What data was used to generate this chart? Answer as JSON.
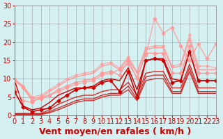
{
  "bg_color": "#d4f0f0",
  "grid_color": "#aaaaaa",
  "xlabel": "Vent moyen/en rafales ( km/h )",
  "xlabel_color": "#cc0000",
  "xlabel_fontsize": 9,
  "tick_color": "#cc0000",
  "tick_fontsize": 7,
  "ylim": [
    0,
    30
  ],
  "xlim": [
    0,
    23
  ],
  "yticks": [
    0,
    5,
    10,
    15,
    20,
    25,
    30
  ],
  "xticks": [
    0,
    1,
    2,
    3,
    4,
    5,
    6,
    7,
    8,
    9,
    10,
    11,
    12,
    13,
    14,
    15,
    16,
    17,
    18,
    19,
    20,
    21,
    22,
    23
  ],
  "series": [
    {
      "x": [
        0,
        1,
        2,
        3,
        4,
        5,
        6,
        7,
        8,
        9,
        10,
        11,
        12,
        13,
        14,
        15,
        16,
        17,
        18,
        19,
        20,
        21,
        22,
        23
      ],
      "y": [
        6.5,
        2.2,
        1.0,
        1.5,
        2.0,
        4.0,
        5.5,
        7.0,
        7.5,
        7.5,
        9.0,
        9.5,
        6.5,
        12.0,
        5.0,
        15.0,
        15.5,
        15.0,
        9.0,
        9.5,
        17.5,
        9.5,
        9.5,
        9.5
      ],
      "color": "#cc0000",
      "lw": 1.2,
      "marker": "D",
      "ms": 2.5,
      "alpha": 1.0
    },
    {
      "x": [
        0,
        1,
        2,
        3,
        4,
        5,
        6,
        7,
        8,
        9,
        10,
        11,
        12,
        13,
        14,
        15,
        16,
        17,
        18,
        19,
        20,
        21,
        22,
        23
      ],
      "y": [
        9.5,
        2.5,
        1.5,
        2.0,
        3.5,
        5.5,
        6.5,
        7.5,
        7.5,
        8.0,
        9.5,
        10.0,
        9.5,
        13.0,
        7.0,
        15.0,
        15.5,
        15.5,
        10.0,
        9.5,
        17.5,
        9.5,
        9.5,
        9.5
      ],
      "color": "#cc0000",
      "lw": 1.0,
      "marker": null,
      "ms": 0,
      "alpha": 1.0
    },
    {
      "x": [
        0,
        1,
        2,
        3,
        4,
        5,
        6,
        7,
        8,
        9,
        10,
        11,
        12,
        13,
        14,
        15,
        16,
        17,
        18,
        19,
        20,
        21,
        22,
        23
      ],
      "y": [
        9.5,
        7.5,
        4.0,
        4.5,
        5.5,
        7.0,
        8.0,
        9.0,
        9.5,
        10.0,
        11.5,
        12.0,
        11.0,
        15.0,
        10.0,
        17.0,
        17.0,
        17.0,
        11.5,
        11.5,
        19.0,
        11.5,
        11.5,
        11.5
      ],
      "color": "#ff9999",
      "lw": 1.0,
      "marker": "D",
      "ms": 2.5,
      "alpha": 1.0
    },
    {
      "x": [
        0,
        1,
        2,
        3,
        4,
        5,
        6,
        7,
        8,
        9,
        10,
        11,
        12,
        13,
        14,
        15,
        16,
        17,
        18,
        19,
        20,
        21,
        22,
        23
      ],
      "y": [
        9.8,
        7.8,
        4.5,
        5.0,
        6.5,
        8.0,
        9.5,
        10.5,
        11.0,
        11.5,
        13.5,
        14.0,
        12.5,
        15.5,
        11.5,
        18.0,
        18.5,
        18.5,
        13.0,
        13.5,
        21.0,
        12.5,
        12.5,
        12.5
      ],
      "color": "#ff9999",
      "lw": 1.0,
      "marker": null,
      "ms": 0,
      "alpha": 1.0
    },
    {
      "x": [
        0,
        1,
        2,
        3,
        4,
        5,
        6,
        7,
        8,
        9,
        10,
        11,
        12,
        13,
        14,
        15,
        16,
        17,
        18,
        19,
        20,
        21,
        22,
        23
      ],
      "y": [
        10.0,
        8.0,
        5.0,
        5.5,
        7.0,
        8.5,
        10.0,
        11.0,
        11.5,
        12.0,
        14.0,
        14.5,
        13.0,
        16.0,
        12.0,
        18.5,
        19.0,
        19.0,
        13.5,
        14.0,
        22.0,
        13.5,
        13.5,
        13.0
      ],
      "color": "#ff9999",
      "lw": 1.0,
      "marker": "D",
      "ms": 2.0,
      "alpha": 0.7
    },
    {
      "x": [
        0,
        1,
        2,
        3,
        4,
        5,
        6,
        7,
        8,
        9,
        10,
        11,
        12,
        13,
        14,
        15,
        16,
        17,
        18,
        19,
        20,
        21,
        22,
        23
      ],
      "y": [
        0.5,
        0.5,
        0.5,
        0.5,
        1.5,
        3.0,
        4.0,
        5.0,
        5.5,
        5.5,
        6.5,
        7.0,
        7.0,
        9.0,
        5.5,
        11.5,
        12.0,
        12.0,
        7.5,
        7.5,
        14.0,
        7.5,
        7.5,
        7.5
      ],
      "color": "#cc0000",
      "lw": 1.0,
      "marker": null,
      "ms": 0,
      "alpha": 0.8
    },
    {
      "x": [
        0,
        1,
        2,
        3,
        4,
        5,
        6,
        7,
        8,
        9,
        10,
        11,
        12,
        13,
        14,
        15,
        16,
        17,
        18,
        19,
        20,
        21,
        22,
        23
      ],
      "y": [
        0.3,
        0.3,
        0.3,
        0.3,
        1.0,
        2.0,
        3.0,
        4.0,
        4.5,
        4.5,
        5.5,
        6.0,
        6.0,
        8.0,
        4.5,
        10.5,
        11.0,
        11.0,
        6.5,
        6.5,
        13.0,
        6.5,
        6.5,
        6.5
      ],
      "color": "#cc0000",
      "lw": 1.0,
      "marker": null,
      "ms": 0,
      "alpha": 0.8
    },
    {
      "x": [
        0,
        1,
        2,
        3,
        4,
        5,
        6,
        7,
        8,
        9,
        10,
        11,
        12,
        13,
        14,
        15,
        16,
        17,
        18,
        19,
        20,
        21,
        22,
        23
      ],
      "y": [
        0.2,
        0.2,
        0.2,
        0.2,
        0.7,
        1.5,
        2.5,
        3.5,
        4.0,
        4.0,
        5.0,
        5.5,
        5.5,
        7.0,
        4.0,
        9.5,
        10.0,
        10.0,
        6.0,
        6.0,
        12.0,
        6.0,
        6.0,
        6.0
      ],
      "color": "#cc0000",
      "lw": 1.0,
      "marker": null,
      "ms": 0,
      "alpha": 0.8
    },
    {
      "x": [
        0,
        1,
        2,
        3,
        4,
        5,
        6,
        7,
        8,
        9,
        10,
        11,
        12,
        13,
        14,
        15,
        16,
        17,
        18,
        19,
        20,
        21,
        22,
        23
      ],
      "y": [
        7.5,
        4.0,
        3.5,
        5.0,
        5.5,
        6.5,
        7.5,
        8.5,
        9.0,
        9.5,
        11.0,
        11.5,
        12.5,
        14.0,
        10.5,
        16.5,
        26.5,
        22.5,
        24.0,
        19.0,
        15.0,
        19.5,
        15.5,
        19.5
      ],
      "color": "#ff9999",
      "lw": 1.0,
      "marker": "D",
      "ms": 2.5,
      "alpha": 0.85
    }
  ]
}
